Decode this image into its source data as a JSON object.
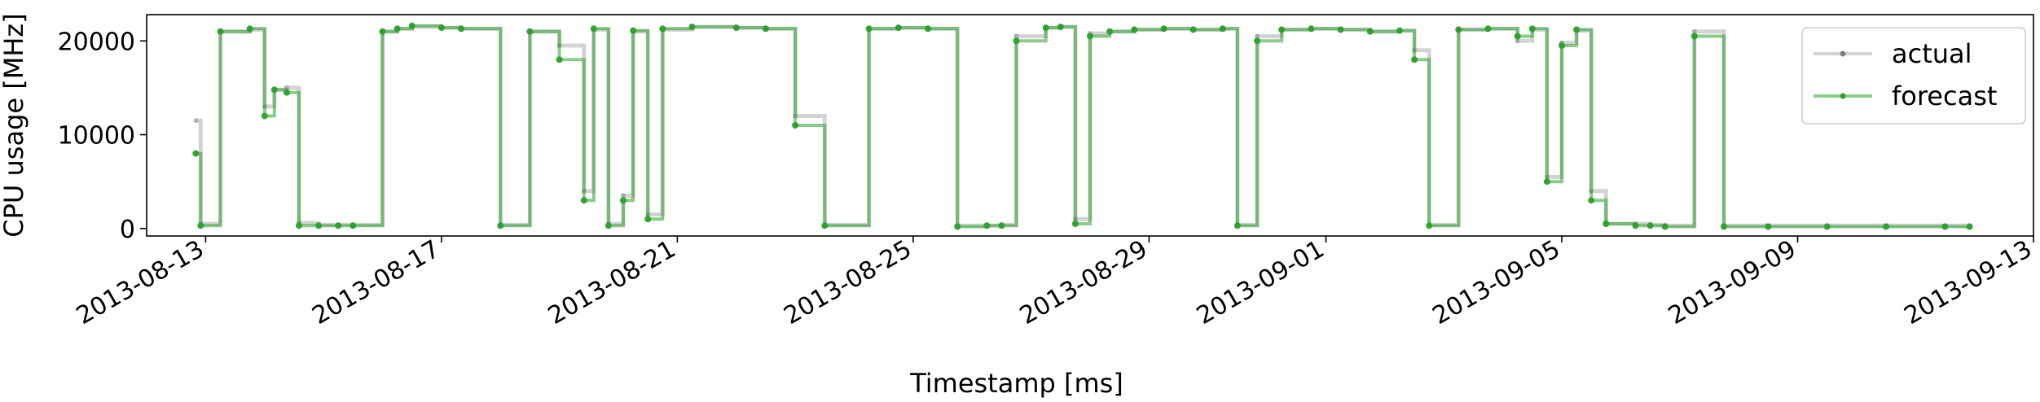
{
  "chart_data": {
    "type": "line",
    "title": "",
    "xlabel": "Timestamp [ms]",
    "ylabel": "CPU usage [MHz]",
    "ylim": [
      -800,
      22800
    ],
    "xlim": [
      "2013-08-12",
      "2013-09-13"
    ],
    "x_ticks": [
      "2013-08-13",
      "2013-08-17",
      "2013-08-21",
      "2013-08-25",
      "2013-08-29",
      "2013-09-01",
      "2013-09-05",
      "2013-09-09",
      "2013-09-13"
    ],
    "y_ticks": [
      0,
      10000,
      20000
    ],
    "y_tick_labels": [
      "0",
      "10000",
      "20000"
    ],
    "grid": false,
    "legend": {
      "position": "top-right",
      "entries": [
        "actual",
        "forecast"
      ]
    },
    "series": [
      {
        "name": "actual",
        "color": "#808080",
        "x": [
          "2013-08-12 20:00",
          "2013-08-12 22:00",
          "2013-08-13 06:00",
          "2013-08-13 18:00",
          "2013-08-14 00:00",
          "2013-08-14 04:00",
          "2013-08-14 09:00",
          "2013-08-14 14:00",
          "2013-08-14 22:00",
          "2013-08-15 06:00",
          "2013-08-15 12:00",
          "2013-08-16 00:00",
          "2013-08-16 06:00",
          "2013-08-16 12:00",
          "2013-08-17 00:00",
          "2013-08-17 08:00",
          "2013-08-18 00:00",
          "2013-08-18 12:00",
          "2013-08-19 00:00",
          "2013-08-19 10:00",
          "2013-08-19 14:00",
          "2013-08-19 20:00",
          "2013-08-20 02:00",
          "2013-08-20 06:00",
          "2013-08-20 12:00",
          "2013-08-20 18:00",
          "2013-08-21 06:00",
          "2013-08-22 00:00",
          "2013-08-22 12:00",
          "2013-08-23 00:00",
          "2013-08-23 12:00",
          "2013-08-24 06:00",
          "2013-08-24 18:00",
          "2013-08-25 06:00",
          "2013-08-25 18:00",
          "2013-08-26 06:00",
          "2013-08-26 12:00",
          "2013-08-26 18:00",
          "2013-08-27 06:00",
          "2013-08-27 12:00",
          "2013-08-27 18:00",
          "2013-08-28 00:00",
          "2013-08-28 08:00",
          "2013-08-28 18:00",
          "2013-08-29 06:00",
          "2013-08-29 18:00",
          "2013-08-30 06:00",
          "2013-08-30 12:00",
          "2013-08-30 20:00",
          "2013-08-31 06:00",
          "2013-08-31 18:00",
          "2013-09-01 06:00",
          "2013-09-01 18:00",
          "2013-09-02 06:00",
          "2013-09-02 12:00",
          "2013-09-02 18:00",
          "2013-09-03 06:00",
          "2013-09-03 18:00",
          "2013-09-04 06:00",
          "2013-09-04 12:00",
          "2013-09-04 18:00",
          "2013-09-05 00:00",
          "2013-09-05 06:00",
          "2013-09-05 12:00",
          "2013-09-05 18:00",
          "2013-09-06 06:00",
          "2013-09-06 12:00",
          "2013-09-06 18:00",
          "2013-09-07 06:00",
          "2013-09-07 18:00",
          "2013-09-08 12:00",
          "2013-09-09 12:00",
          "2013-09-10 12:00",
          "2013-09-11 12:00",
          "2013-09-11 22:00"
        ],
        "values": [
          11500,
          500,
          21000,
          21200,
          13000,
          14800,
          15000,
          600,
          400,
          400,
          400,
          21000,
          21300,
          21500,
          21400,
          21300,
          400,
          21000,
          19500,
          4000,
          21200,
          500,
          3500,
          21000,
          1500,
          21200,
          21500,
          21400,
          21300,
          12000,
          400,
          21300,
          21400,
          21300,
          300,
          300,
          400,
          20500,
          21400,
          21500,
          1000,
          20800,
          21000,
          21200,
          21300,
          21200,
          21300,
          400,
          20500,
          21200,
          21300,
          21200,
          21000,
          21100,
          19000,
          400,
          21200,
          21300,
          20000,
          21200,
          5500,
          19800,
          21100,
          4000,
          500,
          500,
          400,
          300,
          21000,
          300,
          300,
          300,
          300,
          300,
          300
        ]
      },
      {
        "name": "forecast",
        "color": "#2ca02c",
        "x": [
          "2013-08-12 20:00",
          "2013-08-12 22:00",
          "2013-08-13 06:00",
          "2013-08-13 18:00",
          "2013-08-14 00:00",
          "2013-08-14 04:00",
          "2013-08-14 09:00",
          "2013-08-14 14:00",
          "2013-08-14 22:00",
          "2013-08-15 06:00",
          "2013-08-15 12:00",
          "2013-08-16 00:00",
          "2013-08-16 06:00",
          "2013-08-16 12:00",
          "2013-08-17 00:00",
          "2013-08-17 08:00",
          "2013-08-18 00:00",
          "2013-08-18 12:00",
          "2013-08-19 00:00",
          "2013-08-19 10:00",
          "2013-08-19 14:00",
          "2013-08-19 20:00",
          "2013-08-20 02:00",
          "2013-08-20 06:00",
          "2013-08-20 12:00",
          "2013-08-20 18:00",
          "2013-08-21 06:00",
          "2013-08-22 00:00",
          "2013-08-22 12:00",
          "2013-08-23 00:00",
          "2013-08-23 12:00",
          "2013-08-24 06:00",
          "2013-08-24 18:00",
          "2013-08-25 06:00",
          "2013-08-25 18:00",
          "2013-08-26 06:00",
          "2013-08-26 12:00",
          "2013-08-26 18:00",
          "2013-08-27 06:00",
          "2013-08-27 12:00",
          "2013-08-27 18:00",
          "2013-08-28 00:00",
          "2013-08-28 08:00",
          "2013-08-28 18:00",
          "2013-08-29 06:00",
          "2013-08-29 18:00",
          "2013-08-30 06:00",
          "2013-08-30 12:00",
          "2013-08-30 20:00",
          "2013-08-31 06:00",
          "2013-08-31 18:00",
          "2013-09-01 06:00",
          "2013-09-01 18:00",
          "2013-09-02 06:00",
          "2013-09-02 12:00",
          "2013-09-02 18:00",
          "2013-09-03 06:00",
          "2013-09-03 18:00",
          "2013-09-04 06:00",
          "2013-09-04 12:00",
          "2013-09-04 18:00",
          "2013-09-05 00:00",
          "2013-09-05 06:00",
          "2013-09-05 12:00",
          "2013-09-05 18:00",
          "2013-09-06 06:00",
          "2013-09-06 12:00",
          "2013-09-06 18:00",
          "2013-09-07 06:00",
          "2013-09-07 18:00",
          "2013-09-08 12:00",
          "2013-09-09 12:00",
          "2013-09-10 12:00",
          "2013-09-11 12:00",
          "2013-09-11 22:00"
        ],
        "values": [
          8000,
          300,
          21000,
          21300,
          12000,
          14800,
          14500,
          300,
          300,
          300,
          300,
          21000,
          21300,
          21600,
          21400,
          21300,
          300,
          21000,
          18000,
          3000,
          21300,
          300,
          3000,
          21100,
          1000,
          21300,
          21500,
          21400,
          21300,
          11000,
          300,
          21300,
          21400,
          21300,
          200,
          300,
          300,
          20000,
          21400,
          21500,
          500,
          20500,
          21000,
          21200,
          21300,
          21200,
          21300,
          300,
          20000,
          21200,
          21300,
          21200,
          21000,
          21100,
          18000,
          300,
          21200,
          21300,
          20500,
          21300,
          5000,
          19500,
          21200,
          3000,
          500,
          300,
          300,
          200,
          20500,
          200,
          200,
          200,
          200,
          200,
          200
        ]
      }
    ]
  }
}
